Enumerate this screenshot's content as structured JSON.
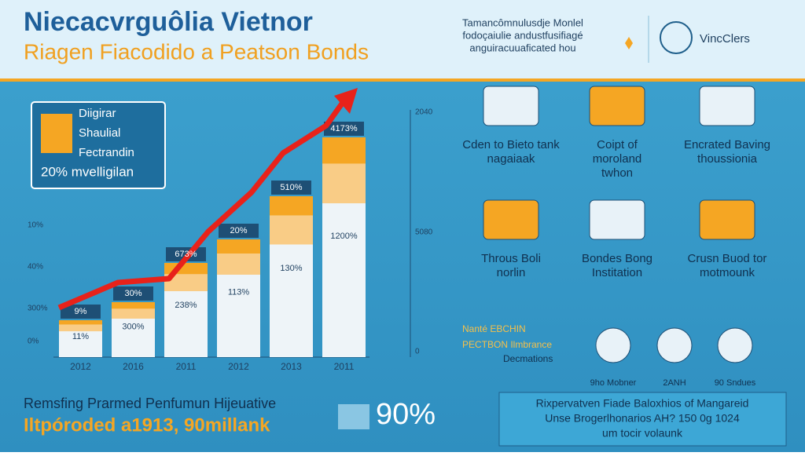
{
  "header": {
    "title": "Niecacvrguôlia Vietnor",
    "subtitle": "Riagen Fiacodido a Peatson Bonds",
    "note": [
      "Tamancômnulusdje Monlel",
      "fodoçaiulie andustfusifiagé",
      "anguiracuuaficated hou"
    ],
    "logo": "VincClers"
  },
  "callout": [
    "Diigirar",
    "Shaulial",
    "Fectrandin",
    "20% mvelligilan"
  ],
  "chart": {
    "left_ticks": [
      "10%",
      "40%",
      "300%",
      "0%"
    ],
    "right_ticks": [
      "2040",
      "5080",
      "0"
    ],
    "bars": [
      {
        "year": "2012",
        "top": "9%",
        "inner": "11%"
      },
      {
        "year": "2016",
        "top": "30%",
        "inner": "300%"
      },
      {
        "year": "2011",
        "top": "673%",
        "inner": "238%"
      },
      {
        "year": "2012",
        "top": "20%",
        "inner": "113%"
      },
      {
        "year": "2013",
        "top": "510%",
        "inner": "130%"
      },
      {
        "year": "2011",
        "top": "4173%",
        "inner": "1200%"
      }
    ]
  },
  "features": [
    [
      "Cden to Bieto tank",
      "nagaiaak"
    ],
    [
      "Coipt of",
      "moroland",
      "twhon"
    ],
    [
      "Encrated Baving",
      "thoussionia"
    ],
    [
      "Throus Boli",
      "norlin"
    ],
    [
      "Bondes Bong",
      "Institation"
    ],
    [
      "Crusn Buod tor",
      "motmounk"
    ]
  ],
  "legend_note": [
    "Nanté EBCHIN",
    "PECTBON Ilmbrance",
    "Decmations"
  ],
  "legend": [
    "9ho Mobner",
    "2ANH",
    "90 Sndues"
  ],
  "footer": {
    "line1": "Remsfing Prarmed Penfumun Hijeuative",
    "line2": "Iltpóroded a1913, 90millank",
    "big": "90%",
    "box": [
      "Rixpervatven Fiade Baloxhios of Mangareid",
      "Unse Brogerlhonarios AH? 150 0g 1024",
      "um tocir volaunk"
    ]
  }
}
